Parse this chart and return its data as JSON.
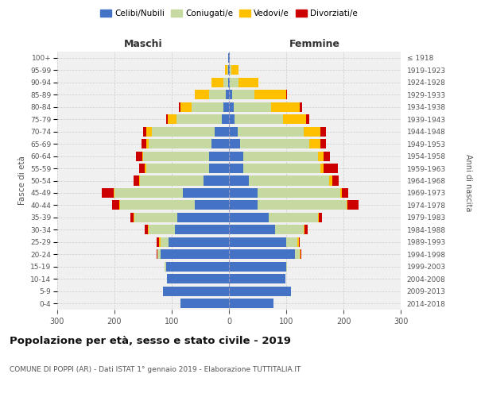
{
  "age_groups": [
    "0-4",
    "5-9",
    "10-14",
    "15-19",
    "20-24",
    "25-29",
    "30-34",
    "35-39",
    "40-44",
    "45-49",
    "50-54",
    "55-59",
    "60-64",
    "65-69",
    "70-74",
    "75-79",
    "80-84",
    "85-89",
    "90-94",
    "95-99",
    "100+"
  ],
  "birth_years": [
    "2014-2018",
    "2009-2013",
    "2004-2008",
    "1999-2003",
    "1994-1998",
    "1989-1993",
    "1984-1988",
    "1979-1983",
    "1974-1978",
    "1969-1973",
    "1964-1968",
    "1959-1963",
    "1954-1958",
    "1949-1953",
    "1944-1948",
    "1939-1943",
    "1934-1938",
    "1929-1933",
    "1924-1928",
    "1919-1923",
    "≤ 1918"
  ],
  "maschi": {
    "celibi": [
      85,
      115,
      108,
      110,
      120,
      105,
      95,
      90,
      60,
      80,
      45,
      35,
      35,
      30,
      25,
      12,
      10,
      5,
      2,
      1,
      1
    ],
    "coniugati": [
      0,
      0,
      0,
      3,
      5,
      15,
      45,
      75,
      130,
      120,
      110,
      110,
      115,
      110,
      110,
      80,
      55,
      30,
      8,
      2,
      0
    ],
    "vedovi": [
      0,
      0,
      0,
      0,
      0,
      2,
      2,
      2,
      2,
      2,
      2,
      2,
      2,
      5,
      10,
      15,
      20,
      25,
      20,
      4,
      0
    ],
    "divorziati": [
      0,
      0,
      0,
      0,
      2,
      5,
      5,
      5,
      12,
      20,
      10,
      10,
      10,
      8,
      5,
      3,
      2,
      0,
      0,
      0,
      0
    ]
  },
  "femmine": {
    "nubili": [
      78,
      108,
      98,
      100,
      115,
      100,
      80,
      70,
      50,
      50,
      35,
      25,
      25,
      20,
      15,
      10,
      8,
      5,
      2,
      1,
      1
    ],
    "coniugate": [
      0,
      0,
      0,
      2,
      8,
      20,
      50,
      85,
      155,
      145,
      140,
      135,
      130,
      120,
      115,
      85,
      65,
      40,
      15,
      3,
      0
    ],
    "vedove": [
      0,
      0,
      0,
      0,
      2,
      2,
      2,
      2,
      2,
      2,
      5,
      5,
      10,
      20,
      30,
      40,
      50,
      55,
      35,
      12,
      1
    ],
    "divorziate": [
      0,
      0,
      0,
      0,
      2,
      2,
      5,
      5,
      20,
      12,
      12,
      25,
      12,
      10,
      10,
      5,
      5,
      2,
      0,
      0,
      0
    ]
  },
  "colors": {
    "celibi_nubili": "#4472c4",
    "coniugati": "#c5d9a0",
    "vedovi": "#ffc000",
    "divorziati": "#cc0000"
  },
  "title": "Popolazione per età, sesso e stato civile - 2019",
  "subtitle": "COMUNE DI POPPI (AR) - Dati ISTAT 1° gennaio 2019 - Elaborazione TUTTITALIA.IT",
  "ylabel": "Fasce di età",
  "ylabel_right": "Anni di nascita",
  "xlabel_left": "Maschi",
  "xlabel_right": "Femmine",
  "xlim": 300,
  "bg_color": "#f0f0f0",
  "grid_color": "#cccccc"
}
